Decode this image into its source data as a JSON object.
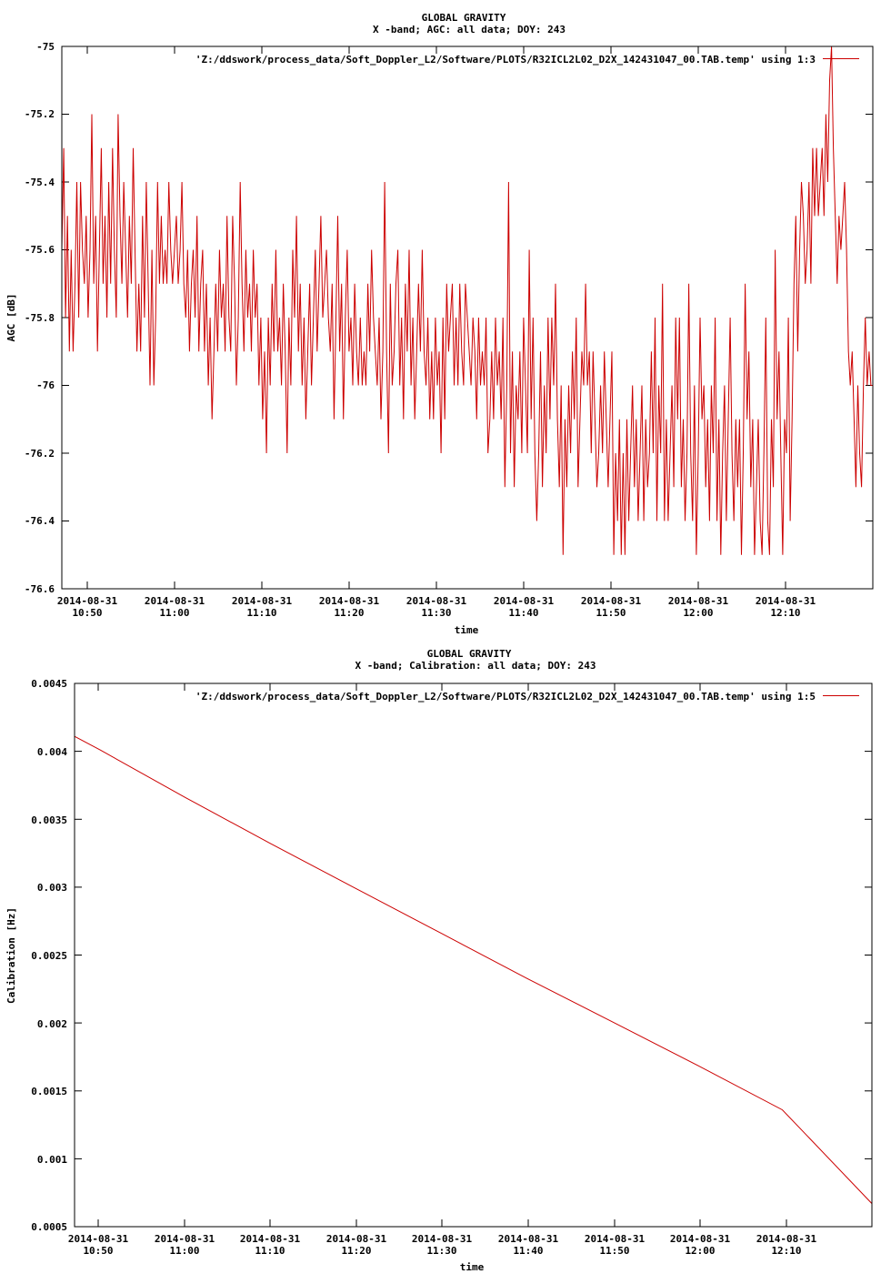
{
  "charts": [
    {
      "title": "GLOBAL GRAVITY",
      "subtitle": "X -band; AGC: all data; DOY: 243",
      "xlabel": "time",
      "ylabel": "AGC [dB]",
      "legend": "'Z:/ddswork/process_data/Soft_Doppler_L2/Software/PLOTS/R32ICL2L02_D2X_142431047_00.TAB.temp' using 1:3",
      "ytick_labels": [
        "-75",
        "-75.2",
        "-75.4",
        "-75.6",
        "-75.8",
        "-76",
        "-76.2",
        "-76.4",
        "-76.6"
      ],
      "xtick_dates": [
        "2014-08-31",
        "2014-08-31",
        "2014-08-31",
        "2014-08-31",
        "2014-08-31",
        "2014-08-31",
        "2014-08-31",
        "2014-08-31",
        "2014-08-31"
      ],
      "xtick_times": [
        "10:50",
        "11:00",
        "11:10",
        "11:20",
        "11:30",
        "11:40",
        "11:50",
        "12:00",
        "12:10"
      ]
    },
    {
      "title": "GLOBAL GRAVITY",
      "subtitle": "X -band; Calibration: all data; DOY: 243",
      "xlabel": "time",
      "ylabel": "Calibration [Hz]",
      "legend": "'Z:/ddswork/process_data/Soft_Doppler_L2/Software/PLOTS/R32ICL2L02_D2X_142431047_00.TAB.temp' using 1:5",
      "ytick_labels": [
        "0.0045",
        "0.004",
        "0.0035",
        "0.003",
        "0.0025",
        "0.002",
        "0.0015",
        "0.001",
        "0.0005"
      ],
      "xtick_dates": [
        "2014-08-31",
        "2014-08-31",
        "2014-08-31",
        "2014-08-31",
        "2014-08-31",
        "2014-08-31",
        "2014-08-31",
        "2014-08-31",
        "2014-08-31"
      ],
      "xtick_times": [
        "10:50",
        "11:00",
        "11:10",
        "11:20",
        "11:30",
        "11:40",
        "11:50",
        "12:00",
        "12:10"
      ]
    }
  ],
  "chart_data": [
    {
      "type": "line",
      "title": "GLOBAL GRAVITY",
      "subtitle": "X -band; AGC: all data; DOY: 243",
      "xlabel": "time",
      "ylabel": "AGC [dB]",
      "xlim": [
        "2014-08-31 10:47:00",
        "2014-08-31 12:20:30"
      ],
      "ylim": [
        -76.6,
        -75
      ],
      "x_ticks": [
        "2014-08-31 10:50",
        "2014-08-31 11:00",
        "2014-08-31 11:10",
        "2014-08-31 11:20",
        "2014-08-31 11:30",
        "2014-08-31 11:40",
        "2014-08-31 11:50",
        "2014-08-31 12:00",
        "2014-08-31 12:10"
      ],
      "y_ticks": [
        -75,
        -75.2,
        -75.4,
        -75.6,
        -75.8,
        -76,
        -76.2,
        -76.4,
        -76.6
      ],
      "legend_position": "top-right",
      "grid": false,
      "line_color": "#cc0000",
      "series": [
        {
          "name": "'Z:/ddswork/process_data/Soft_Doppler_L2/Software/PLOTS/R32ICL2L02_D2X_142431047_00.TAB.temp' using 1:3",
          "time_start": "2014-08-31 10:47:00",
          "time_end": "2014-08-31 12:20:30",
          "values": [
            -75.6,
            -75.3,
            -75.8,
            -75.5,
            -75.9,
            -75.6,
            -75.9,
            -75.7,
            -75.4,
            -75.8,
            -75.4,
            -75.6,
            -75.7,
            -75.5,
            -75.8,
            -75.6,
            -75.2,
            -75.7,
            -75.5,
            -75.9,
            -75.6,
            -75.3,
            -75.7,
            -75.5,
            -75.8,
            -75.4,
            -75.7,
            -75.3,
            -75.6,
            -75.8,
            -75.2,
            -75.5,
            -75.7,
            -75.4,
            -75.6,
            -75.8,
            -75.5,
            -75.7,
            -75.3,
            -75.6,
            -75.9,
            -75.7,
            -75.9,
            -75.5,
            -75.8,
            -75.4,
            -75.7,
            -76,
            -75.6,
            -76,
            -75.8,
            -75.4,
            -75.7,
            -75.5,
            -75.7,
            -75.6,
            -75.7,
            -75.4,
            -75.6,
            -75.7,
            -75.6,
            -75.5,
            -75.7,
            -75.6,
            -75.4,
            -75.7,
            -75.8,
            -75.6,
            -75.9,
            -75.7,
            -75.6,
            -75.8,
            -75.5,
            -75.9,
            -75.7,
            -75.6,
            -75.9,
            -75.7,
            -76,
            -75.8,
            -76.1,
            -75.9,
            -75.7,
            -75.9,
            -75.6,
            -75.8,
            -75.7,
            -75.9,
            -75.5,
            -75.8,
            -75.9,
            -75.5,
            -75.7,
            -76,
            -75.8,
            -75.4,
            -75.7,
            -75.9,
            -75.6,
            -75.8,
            -75.7,
            -75.9,
            -75.6,
            -75.8,
            -75.7,
            -76,
            -75.8,
            -76.1,
            -75.9,
            -76.2,
            -75.8,
            -76,
            -75.7,
            -75.9,
            -75.6,
            -75.9,
            -75.8,
            -76,
            -75.7,
            -75.9,
            -76.2,
            -75.8,
            -76,
            -75.6,
            -75.8,
            -75.5,
            -75.9,
            -75.7,
            -76,
            -75.8,
            -76.1,
            -75.9,
            -75.7,
            -76,
            -75.8,
            -75.6,
            -75.9,
            -75.7,
            -75.5,
            -75.8,
            -75.7,
            -75.6,
            -75.8,
            -75.9,
            -75.7,
            -76.1,
            -75.8,
            -75.5,
            -75.9,
            -75.7,
            -76.1,
            -75.8,
            -75.6,
            -75.9,
            -75.8,
            -76,
            -75.7,
            -75.9,
            -76,
            -75.8,
            -76,
            -75.9,
            -76,
            -75.7,
            -75.9,
            -75.6,
            -75.8,
            -75.9,
            -76,
            -75.8,
            -76.1,
            -75.9,
            -75.4,
            -75.9,
            -76.2,
            -75.7,
            -76,
            -75.9,
            -75.7,
            -75.6,
            -76,
            -75.8,
            -76.1,
            -75.7,
            -75.9,
            -75.6,
            -76,
            -75.8,
            -76.1,
            -75.9,
            -75.7,
            -75.9,
            -75.6,
            -75.9,
            -76,
            -75.8,
            -76.1,
            -75.9,
            -76.1,
            -75.8,
            -76,
            -75.9,
            -76.2,
            -75.8,
            -76.1,
            -75.7,
            -75.9,
            -75.8,
            -75.7,
            -76,
            -75.8,
            -76,
            -75.7,
            -75.9,
            -76,
            -75.7,
            -75.8,
            -75.9,
            -76,
            -75.8,
            -75.9,
            -76.1,
            -75.8,
            -76,
            -75.9,
            -76,
            -75.8,
            -76.2,
            -76.1,
            -75.9,
            -76.1,
            -75.8,
            -76,
            -75.9,
            -76.1,
            -75.8,
            -76.3,
            -76,
            -75.4,
            -76.2,
            -75.9,
            -76.3,
            -76,
            -76.1,
            -75.9,
            -76.2,
            -75.8,
            -76,
            -76.2,
            -75.6,
            -76.1,
            -75.8,
            -76.2,
            -76.4,
            -76.2,
            -75.9,
            -76.3,
            -76,
            -76.2,
            -75.8,
            -76.1,
            -75.8,
            -76,
            -75.7,
            -76.1,
            -76.3,
            -76,
            -76.5,
            -76.1,
            -76.3,
            -76,
            -76.2,
            -75.9,
            -76.1,
            -75.8,
            -76.3,
            -76.1,
            -75.9,
            -76,
            -75.7,
            -76,
            -75.9,
            -76.2,
            -75.9,
            -76.1,
            -76.3,
            -76.2,
            -76,
            -76.2,
            -75.9,
            -76.1,
            -76.3,
            -76.1,
            -75.9,
            -76.5,
            -76.2,
            -76.4,
            -76.1,
            -76.5,
            -76.2,
            -76.5,
            -76.1,
            -76.4,
            -76.2,
            -76,
            -76.3,
            -76.1,
            -76.4,
            -76.2,
            -76,
            -76.4,
            -76.1,
            -76.3,
            -76.2,
            -75.9,
            -76.2,
            -75.8,
            -76.4,
            -76,
            -76.2,
            -75.7,
            -76.4,
            -76.1,
            -76.4,
            -76.2,
            -76,
            -76.3,
            -75.8,
            -76.1,
            -75.8,
            -76.3,
            -76.1,
            -76.4,
            -76.2,
            -75.7,
            -76.2,
            -76.4,
            -76,
            -76.5,
            -76.2,
            -75.8,
            -76.1,
            -76,
            -76.3,
            -76.1,
            -76.4,
            -76,
            -76.2,
            -75.8,
            -76.4,
            -76.1,
            -76.5,
            -76.2,
            -76,
            -76.4,
            -76.1,
            -75.8,
            -76.2,
            -76.4,
            -76.1,
            -76.3,
            -76.1,
            -76.5,
            -76.2,
            -75.7,
            -76.1,
            -75.9,
            -76.3,
            -76.1,
            -76.5,
            -76.3,
            -76.1,
            -76.4,
            -76.5,
            -76.2,
            -75.8,
            -76.4,
            -76.5,
            -76.1,
            -76.3,
            -75.6,
            -76.1,
            -75.9,
            -76.2,
            -76.5,
            -76.1,
            -76.2,
            -75.8,
            -76.4,
            -76.1,
            -75.7,
            -75.5,
            -75.9,
            -75.6,
            -75.4,
            -75.5,
            -75.7,
            -75.6,
            -75.4,
            -75.7,
            -75.3,
            -75.5,
            -75.3,
            -75.5,
            -75.4,
            -75.3,
            -75.5,
            -75.2,
            -75.4,
            -75.1,
            -75,
            -75.3,
            -75.5,
            -75.7,
            -75.5,
            -75.6,
            -75.5,
            -75.4,
            -75.6,
            -75.9,
            -76,
            -75.9,
            -76.1,
            -76.3,
            -76,
            -76.2,
            -76.3,
            -76,
            -75.8,
            -76,
            -75.9,
            -76,
            -76
          ]
        }
      ]
    },
    {
      "type": "line",
      "title": "GLOBAL GRAVITY",
      "subtitle": "X -band; Calibration: all data; DOY: 243",
      "xlabel": "time",
      "ylabel": "Calibration [Hz]",
      "xlim": [
        "2014-08-31 10:47:00",
        "2014-08-31 12:20:30"
      ],
      "ylim": [
        0.0005,
        0.0045
      ],
      "x_ticks": [
        "2014-08-31 10:50",
        "2014-08-31 11:00",
        "2014-08-31 11:10",
        "2014-08-31 11:20",
        "2014-08-31 11:30",
        "2014-08-31 11:40",
        "2014-08-31 11:50",
        "2014-08-31 12:00",
        "2014-08-31 12:10"
      ],
      "y_ticks": [
        0.0045,
        0.004,
        0.0035,
        0.003,
        0.0025,
        0.002,
        0.0015,
        0.001,
        0.0005
      ],
      "legend_position": "top-right",
      "grid": false,
      "line_color": "#cc0000",
      "series": [
        {
          "name": "'Z:/ddswork/process_data/Soft_Doppler_L2/Software/PLOTS/R32ICL2L02_D2X_142431047_00.TAB.temp' using 1:5",
          "x": [
            "2014-08-31 10:47:00",
            "2014-08-31 10:50",
            "2014-08-31 11:00",
            "2014-08-31 11:10",
            "2014-08-31 11:20",
            "2014-08-31 11:30",
            "2014-08-31 11:40",
            "2014-08-31 11:50",
            "2014-08-31 12:00",
            "2014-08-31 12:10",
            "2014-08-31 12:20:30"
          ],
          "values": [
            0.00411,
            0.00401,
            0.00366,
            0.00332,
            0.00299,
            0.00266,
            0.00233,
            0.00201,
            0.00169,
            0.00136,
            0.00067
          ]
        }
      ]
    }
  ]
}
